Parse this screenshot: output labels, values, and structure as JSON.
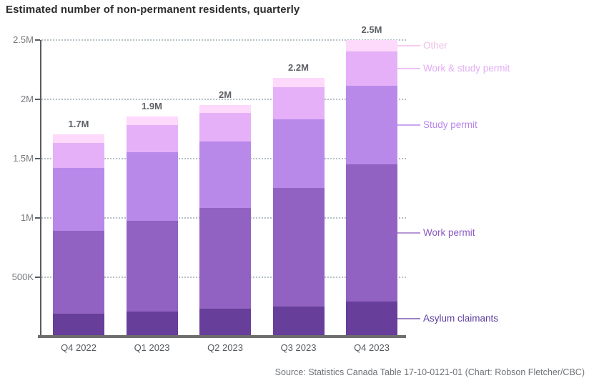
{
  "title": "Estimated number of non-permanent residents, quarterly",
  "source": "Source: Statistics Canada Table 17-10-0121-01 (Chart: Robson Fletcher/CBC)",
  "chart_data": {
    "type": "bar",
    "stacked": true,
    "title": "Estimated number of non-permanent residents, quarterly",
    "categories": [
      "Q4 2022",
      "Q1 2023",
      "Q2 2023",
      "Q3 2023",
      "Q4 2023"
    ],
    "unit": "millions of people",
    "ylim": [
      0,
      2.5
    ],
    "grid": "horizontal-dotted",
    "legend_position": "right",
    "y_ticks": [
      {
        "label": "500K",
        "value": 0.5
      },
      {
        "label": "1M",
        "value": 1
      },
      {
        "label": "1.5M",
        "value": 1.5
      },
      {
        "label": "2M",
        "value": 2
      },
      {
        "label": "2.5M",
        "value": 2.5
      }
    ],
    "series": [
      {
        "name": "Asylum claimants",
        "color": "#673e9a",
        "values": [
          0.19,
          0.21,
          0.23,
          0.25,
          0.29
        ]
      },
      {
        "name": "Work permit",
        "color": "#9162c1",
        "values": [
          0.7,
          0.76,
          0.85,
          1.0,
          1.16
        ]
      },
      {
        "name": "Study permit",
        "color": "#b989ea",
        "values": [
          0.53,
          0.58,
          0.56,
          0.58,
          0.66
        ]
      },
      {
        "name": "Work & study permit",
        "color": "#e5b0f8",
        "values": [
          0.21,
          0.23,
          0.24,
          0.27,
          0.29
        ]
      },
      {
        "name": "Other",
        "color": "#fdd9fb",
        "values": [
          0.07,
          0.07,
          0.07,
          0.08,
          0.1
        ]
      }
    ],
    "total_labels": [
      "1.7M",
      "1.9M",
      "2M",
      "2.2M",
      "2.5M"
    ],
    "legend": [
      {
        "label": "Other",
        "series": "Other",
        "text_color": "#eec0e9",
        "line_color": "#f6ccf2"
      },
      {
        "label": "Work & study permit",
        "series": "Work & study permit",
        "text_color": "#e3adf7",
        "line_color": "#ecc4f9"
      },
      {
        "label": "Study permit",
        "series": "Study permit",
        "text_color": "#b887ec",
        "line_color": "#cda6f1"
      },
      {
        "label": "Work permit",
        "series": "Work permit",
        "text_color": "#8a5ac1",
        "line_color": "#b696d6"
      },
      {
        "label": "Asylum claimants",
        "series": "Asylum claimants",
        "text_color": "#5c3da0",
        "line_color": "#9d86c2"
      }
    ]
  }
}
